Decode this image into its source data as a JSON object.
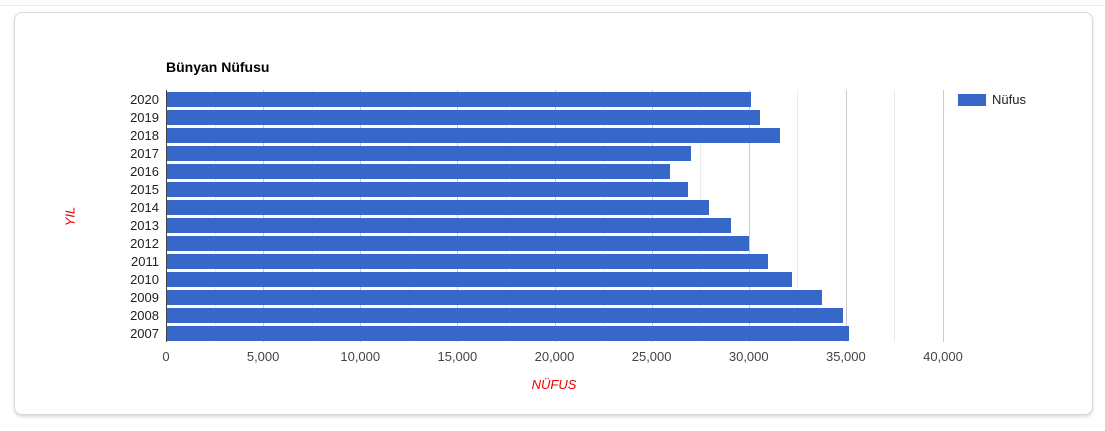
{
  "chart_data": {
    "type": "bar",
    "orientation": "horizontal",
    "title": "Bünyan Nüfusu",
    "xlabel": "NÜFUS",
    "ylabel": "YIL",
    "legend": {
      "position": "right",
      "label": "Nüfus"
    },
    "categories": [
      "2020",
      "2019",
      "2018",
      "2017",
      "2016",
      "2015",
      "2014",
      "2013",
      "2012",
      "2011",
      "2010",
      "2009",
      "2008",
      "2007"
    ],
    "values": [
      30050,
      30550,
      31550,
      27000,
      25900,
      26800,
      27900,
      29050,
      29950,
      30950,
      32200,
      33700,
      34800,
      35100
    ],
    "xlim": [
      0,
      40000
    ],
    "x_ticks": [
      0,
      5000,
      10000,
      15000,
      20000,
      25000,
      30000,
      35000,
      40000
    ],
    "x_tick_labels": [
      "0",
      "5,000",
      "10,000",
      "15,000",
      "20,000",
      "25,000",
      "30,000",
      "35,000",
      "40,000"
    ],
    "grid": true,
    "minor_grid_step": 2500,
    "colors": {
      "bar": "#3667c9",
      "grid_major": "#cccccc",
      "grid_minor": "#ebebeb",
      "axis_line": "#444444",
      "tick_text": "#444444",
      "category_text": "#222222",
      "title_text": "#000000",
      "axis_title_text": "#ee0000",
      "card_border": "#d9d9d9"
    }
  }
}
